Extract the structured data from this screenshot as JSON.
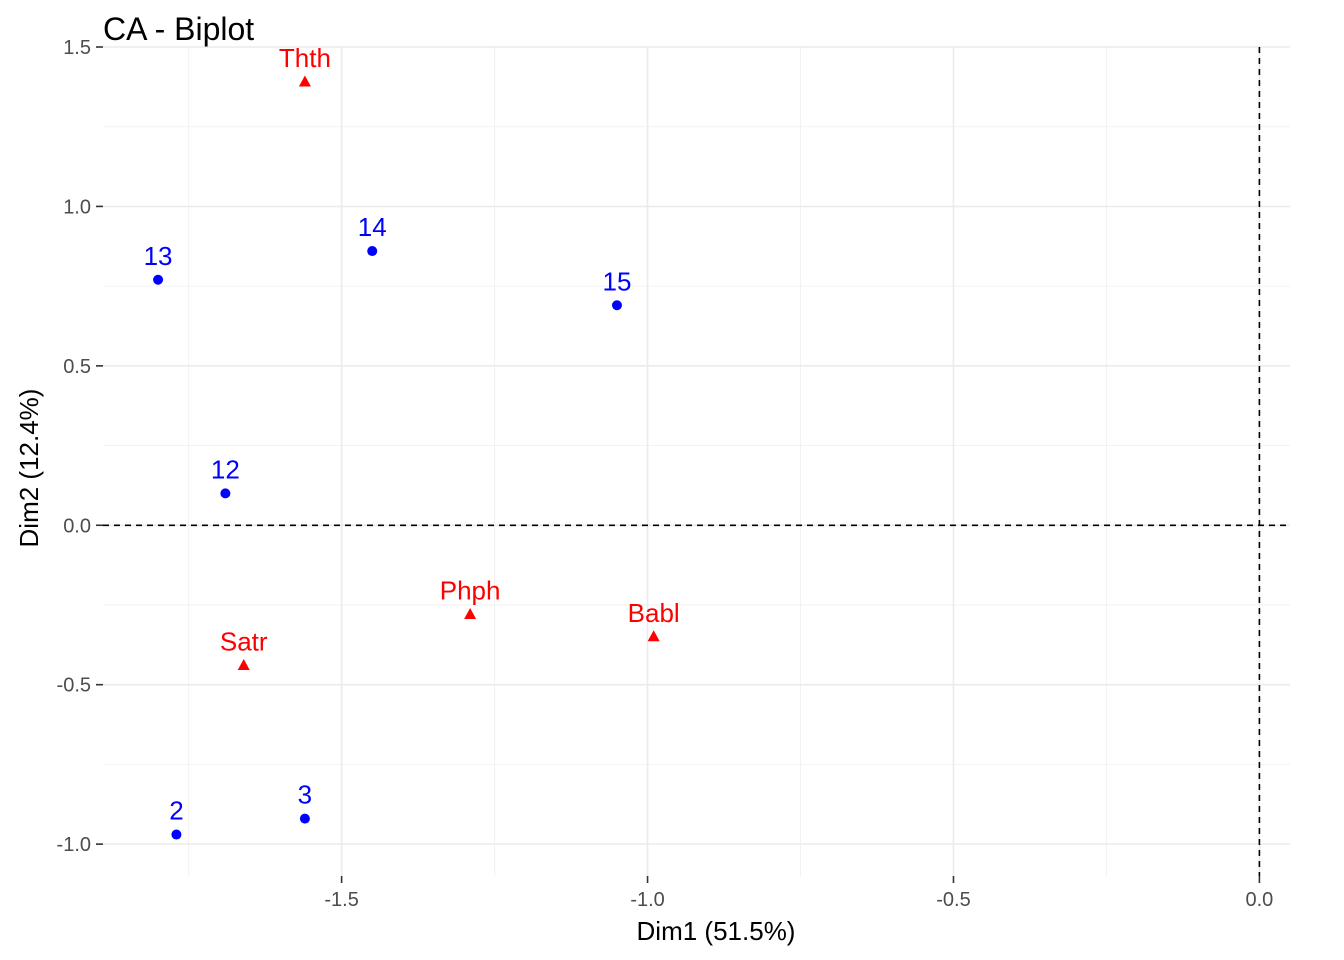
{
  "chart_data": {
    "type": "scatter",
    "title": "CA - Biplot",
    "xlabel": "Dim1 (51.5%)",
    "ylabel": "Dim2 (12.4%)",
    "xlim": [
      -1.89,
      0.05
    ],
    "ylim": [
      -1.1,
      1.5
    ],
    "x_ticks": [
      -1.5,
      -1.0,
      -0.5,
      0.0
    ],
    "x_tick_labels": [
      "-1.5",
      "-1.0",
      "-0.5",
      "0.0"
    ],
    "y_ticks": [
      -1.0,
      -0.5,
      0.0,
      0.5,
      1.0,
      1.5
    ],
    "y_tick_labels": [
      "-1.0",
      "-0.5",
      "0.0",
      "0.5",
      "1.0",
      "1.5"
    ],
    "grid": true,
    "reference_lines": {
      "x": 0,
      "y": 0
    },
    "colors": {
      "rows": "#0000ff",
      "cols": "#ff0000"
    },
    "series": [
      {
        "marker": "circle",
        "color": "#0000ff",
        "points": [
          {
            "label": "13",
            "x": -1.8,
            "y": 0.77
          },
          {
            "label": "14",
            "x": -1.45,
            "y": 0.86
          },
          {
            "label": "15",
            "x": -1.05,
            "y": 0.69
          },
          {
            "label": "12",
            "x": -1.69,
            "y": 0.1
          },
          {
            "label": "2",
            "x": -1.77,
            "y": -0.97
          },
          {
            "label": "3",
            "x": -1.56,
            "y": -0.92
          }
        ]
      },
      {
        "marker": "triangle",
        "color": "#ff0000",
        "points": [
          {
            "label": "Thth",
            "x": -1.56,
            "y": 1.39
          },
          {
            "label": "Phph",
            "x": -1.29,
            "y": -0.28
          },
          {
            "label": "Babl",
            "x": -0.99,
            "y": -0.35
          },
          {
            "label": "Satr",
            "x": -1.66,
            "y": -0.44
          }
        ]
      }
    ]
  }
}
